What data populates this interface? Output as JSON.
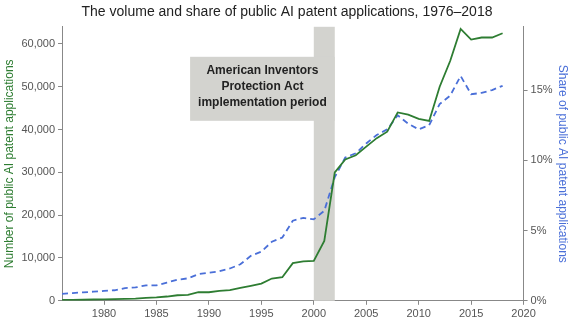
{
  "chart_data": {
    "type": "line",
    "title": "The volume and share of public AI patent applications, 1976–2018",
    "y_label": "Number of public AI patent applications",
    "y2_label": "Share of public AI patent applications",
    "x": [
      1976,
      1977,
      1978,
      1979,
      1980,
      1981,
      1982,
      1983,
      1984,
      1985,
      1986,
      1987,
      1988,
      1989,
      1990,
      1991,
      1992,
      1993,
      1994,
      1995,
      1996,
      1997,
      1998,
      1999,
      2000,
      2001,
      2002,
      2003,
      2004,
      2005,
      2006,
      2007,
      2008,
      2009,
      2010,
      2011,
      2012,
      2013,
      2014,
      2015,
      2016,
      2017,
      2018
    ],
    "series": [
      {
        "color": "#2e7d32",
        "line_style": "solid",
        "axis": "y",
        "values": [
          200,
          200,
          250,
          300,
          350,
          400,
          450,
          500,
          700,
          800,
          1000,
          1300,
          1400,
          2000,
          2000,
          2300,
          2500,
          3000,
          3500,
          4000,
          5200,
          5500,
          8800,
          9200,
          9300,
          14000,
          30000,
          33000,
          34000,
          36000,
          38000,
          39500,
          44000,
          43500,
          42500,
          42000,
          50000,
          56000,
          63500,
          61000,
          61500,
          61500,
          62500
        ]
      },
      {
        "color": "#4a6fd8",
        "line_style": "dashed",
        "axis": "y2",
        "values": [
          0.5,
          0.55,
          0.6,
          0.65,
          0.7,
          0.75,
          0.9,
          0.95,
          1.1,
          1.1,
          1.3,
          1.5,
          1.6,
          1.9,
          2.0,
          2.1,
          2.3,
          2.6,
          3.2,
          3.5,
          4.2,
          4.5,
          5.7,
          5.9,
          5.8,
          6.4,
          8.8,
          10.2,
          10.5,
          11.2,
          11.8,
          12.2,
          13.2,
          12.6,
          12.2,
          12.5,
          14.0,
          14.6,
          16.0,
          14.7,
          14.8,
          15.0,
          15.3
        ]
      }
    ],
    "xlim": [
      1976,
      2020
    ],
    "xticks": [
      1980,
      1985,
      1990,
      1995,
      2000,
      2005,
      2010,
      2015,
      2020
    ],
    "ylim": [
      0,
      64000
    ],
    "yticks": [
      0,
      {
        "value": 10000,
        "label": "10,000"
      },
      {
        "value": 20000,
        "label": "20,000"
      },
      {
        "value": 30000,
        "label": "30,000"
      },
      {
        "value": 40000,
        "label": "40,000"
      },
      {
        "value": 50000,
        "label": "50,000"
      },
      {
        "value": 60000,
        "label": "60,000"
      }
    ],
    "y2lim": [
      0,
      19.5
    ],
    "y2ticks": [
      {
        "value": 0,
        "label": "0%"
      },
      {
        "value": 5,
        "label": "5%"
      },
      {
        "value": 10,
        "label": "10%"
      },
      {
        "value": 15,
        "label": "15%"
      }
    ],
    "shaded_span": {
      "x": [
        2000,
        2002
      ],
      "label": [
        "American Inventors",
        "Protection Act",
        "implementation period"
      ]
    },
    "grid": false
  }
}
